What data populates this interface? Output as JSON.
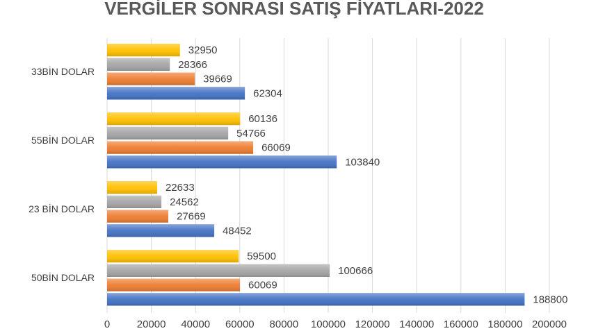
{
  "chart_data": {
    "type": "bar",
    "orientation": "horizontal",
    "title": "VERGİLER SONRASI SATIŞ FİYATLARI-2022",
    "categories": [
      "33BİN DOLAR",
      "55BİN DOLAR",
      "23 BİN DOLAR",
      "50BİN DOLAR"
    ],
    "series": [
      {
        "color": "#4472c4",
        "values": [
          62304,
          103840,
          48452,
          188800
        ]
      },
      {
        "color": "#ed7d31",
        "values": [
          39669,
          66069,
          27669,
          60069
        ]
      },
      {
        "color": "#a5a5a5",
        "values": [
          28366,
          54766,
          24562,
          100666
        ]
      },
      {
        "color": "#ffc000",
        "values": [
          32950,
          60136,
          22633,
          59500
        ]
      }
    ],
    "xlim": [
      0,
      200000
    ],
    "xticks": [
      0,
      20000,
      40000,
      60000,
      80000,
      100000,
      120000,
      140000,
      160000,
      180000,
      200000
    ],
    "grid": true
  }
}
